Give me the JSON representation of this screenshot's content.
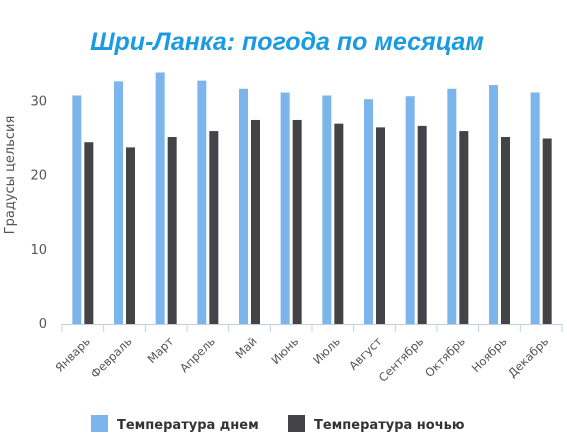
{
  "chart_data": {
    "type": "bar",
    "title": "Шри-Ланка: погода по месяцам",
    "title_color": "#1a9be0",
    "ylabel": "Градусы цельсия",
    "xlabel": "",
    "ylim": [
      0,
      36
    ],
    "yticks": [
      0,
      10,
      20,
      30
    ],
    "grid": false,
    "legend_position": "bottom",
    "categories": [
      "Январь",
      "Февраль",
      "Март",
      "Апрель",
      "Май",
      "Июнь",
      "Июль",
      "Август",
      "Сентябрь",
      "Октябрь",
      "Ноябрь",
      "Декабрь"
    ],
    "series": [
      {
        "name": "Температура днем",
        "color": "#7cb5ec",
        "values": [
          30.8,
          32.7,
          33.9,
          32.8,
          31.7,
          31.2,
          30.8,
          30.3,
          30.7,
          31.7,
          32.2,
          31.2
        ]
      },
      {
        "name": "Температура ночью",
        "color": "#434348",
        "values": [
          24.5,
          23.8,
          25.2,
          26.0,
          27.5,
          27.5,
          27.0,
          26.5,
          26.7,
          26.0,
          25.2,
          25.0
        ]
      }
    ]
  }
}
